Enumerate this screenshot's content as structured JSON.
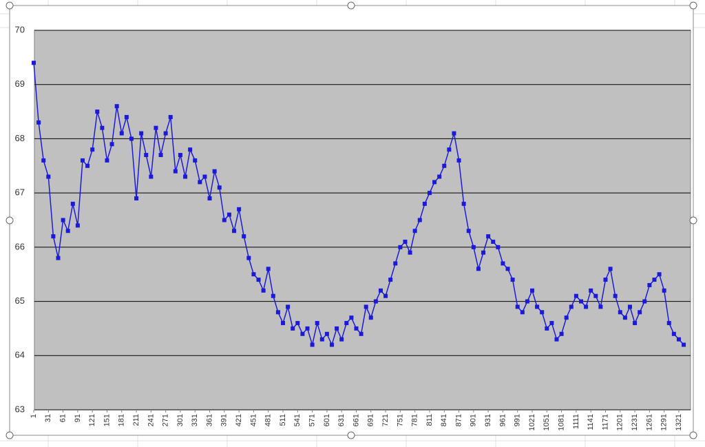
{
  "chart_data": {
    "type": "line",
    "x": [
      1,
      11,
      21,
      31,
      41,
      51,
      61,
      71,
      81,
      91,
      101,
      111,
      121,
      131,
      141,
      151,
      161,
      171,
      181,
      191,
      201,
      211,
      221,
      231,
      241,
      251,
      261,
      271,
      281,
      291,
      301,
      311,
      321,
      331,
      341,
      351,
      361,
      371,
      381,
      391,
      401,
      411,
      421,
      431,
      441,
      451,
      461,
      471,
      481,
      491,
      501,
      511,
      521,
      531,
      541,
      551,
      561,
      571,
      581,
      591,
      601,
      611,
      621,
      631,
      641,
      651,
      661,
      671,
      681,
      691,
      701,
      711,
      721,
      731,
      741,
      751,
      761,
      771,
      781,
      791,
      801,
      811,
      821,
      831,
      841,
      851,
      861,
      871,
      881,
      891,
      901,
      911,
      921,
      931,
      941,
      951,
      961,
      971,
      981,
      991,
      1001,
      1011,
      1021,
      1031,
      1041,
      1051,
      1061,
      1071,
      1081,
      1091,
      1101,
      1111,
      1121,
      1131,
      1141,
      1151,
      1161,
      1171,
      1181,
      1191,
      1201,
      1211,
      1221,
      1231,
      1241,
      1251,
      1261,
      1271,
      1281,
      1291,
      1301,
      1311,
      1321,
      1331
    ],
    "series": [
      {
        "color": "#1a1ad8",
        "values": [
          69.4,
          68.3,
          67.6,
          67.3,
          66.2,
          65.8,
          66.5,
          66.3,
          66.8,
          66.4,
          67.6,
          67.5,
          67.8,
          68.5,
          68.2,
          67.6,
          67.9,
          68.6,
          68.1,
          68.4,
          68.0,
          66.9,
          68.1,
          67.7,
          67.3,
          68.2,
          67.7,
          68.1,
          68.4,
          67.4,
          67.7,
          67.3,
          67.8,
          67.6,
          67.2,
          67.3,
          66.9,
          67.4,
          67.1,
          66.5,
          66.6,
          66.3,
          66.7,
          66.2,
          65.8,
          65.5,
          65.4,
          65.2,
          65.6,
          65.1,
          64.8,
          64.6,
          64.9,
          64.5,
          64.6,
          64.4,
          64.5,
          64.2,
          64.6,
          64.3,
          64.4,
          64.2,
          64.5,
          64.3,
          64.6,
          64.7,
          64.5,
          64.4,
          64.9,
          64.7,
          65.0,
          65.2,
          65.1,
          65.4,
          65.7,
          66.0,
          66.1,
          65.9,
          66.3,
          66.5,
          66.8,
          67.0,
          67.2,
          67.3,
          67.5,
          67.8,
          68.1,
          67.6,
          66.8,
          66.3,
          66.0,
          65.6,
          65.9,
          66.2,
          66.1,
          66.0,
          65.7,
          65.6,
          65.4,
          64.9,
          64.8,
          65.0,
          65.2,
          64.9,
          64.8,
          64.5,
          64.6,
          64.3,
          64.4,
          64.7,
          64.9,
          65.1,
          65.0,
          64.9,
          65.2,
          65.1,
          64.9,
          65.4,
          65.6,
          65.1,
          64.8,
          64.7,
          64.9,
          64.6,
          64.8,
          65.0,
          65.3,
          65.4,
          65.5,
          65.2,
          64.6,
          64.4,
          64.3,
          64.2
        ]
      }
    ],
    "xlim": [
      1,
      1345
    ],
    "xticks": [
      1,
      31,
      61,
      91,
      121,
      151,
      181,
      211,
      241,
      271,
      301,
      331,
      361,
      391,
      421,
      451,
      481,
      511,
      541,
      571,
      601,
      631,
      661,
      691,
      721,
      751,
      781,
      811,
      841,
      871,
      901,
      931,
      961,
      991,
      1021,
      1051,
      1081,
      1111,
      1141,
      1171,
      1201,
      1231,
      1261,
      1291,
      1321
    ],
    "ylim": [
      63,
      70
    ],
    "yticks": [
      63,
      64,
      65,
      66,
      67,
      68,
      69,
      70
    ],
    "grid": true
  }
}
